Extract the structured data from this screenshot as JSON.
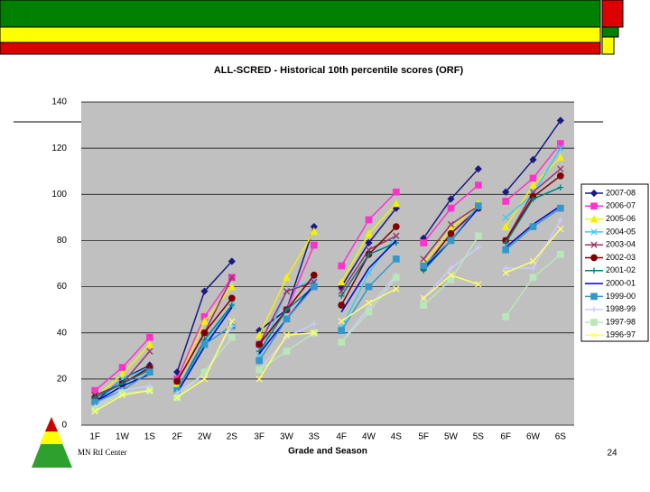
{
  "chart_data": {
    "type": "line",
    "title": "ALL-SCRED - Historical 10th percentile scores (ORF)",
    "x_label": "Grade and Season",
    "categories": [
      "1F",
      "1W",
      "1S",
      "2F",
      "2W",
      "2S",
      "3F",
      "3W",
      "3S",
      "4F",
      "4W",
      "4S",
      "5F",
      "5W",
      "5S",
      "6F",
      "6W",
      "6S"
    ],
    "ylim": [
      0,
      140
    ],
    "yticks": [
      0,
      20,
      40,
      60,
      80,
      100,
      120,
      140
    ],
    "grid": true,
    "legend": "right",
    "series": [
      {
        "name": "2007-08",
        "color": "#1a1a80",
        "marker": "diamond",
        "values": [
          10,
          20,
          26,
          23,
          58,
          71,
          41,
          50,
          86,
          60,
          79,
          94,
          81,
          98,
          111,
          101,
          115,
          132
        ]
      },
      {
        "name": "2006-07",
        "color": "#ff33cc",
        "marker": "square",
        "values": [
          15,
          25,
          38,
          20,
          47,
          64,
          35,
          50,
          78,
          69,
          89,
          101,
          79,
          94,
          104,
          97,
          107,
          122
        ]
      },
      {
        "name": "2005-06",
        "color": "#f2f200",
        "marker": "triangle",
        "values": [
          12,
          22,
          35,
          18,
          45,
          60,
          39,
          64,
          84,
          62,
          83,
          96,
          70,
          85,
          96,
          86,
          104,
          116
        ]
      },
      {
        "name": "2004-05",
        "color": "#33ccff",
        "marker": "x",
        "values": [
          9,
          20,
          25,
          15,
          35,
          52,
          30,
          58,
          63,
          42,
          66,
          82,
          69,
          80,
          94,
          90,
          100,
          120
        ]
      },
      {
        "name": "2003-04",
        "color": "#993366",
        "marker": "x",
        "values": [
          13,
          18,
          32,
          19,
          40,
          64,
          35,
          58,
          62,
          58,
          76,
          82,
          72,
          87,
          95,
          80,
          101,
          111
        ]
      },
      {
        "name": "2002-03",
        "color": "#800000",
        "marker": "circle",
        "values": [
          12,
          18,
          25,
          19,
          40,
          55,
          35,
          50,
          65,
          52,
          74,
          86,
          68,
          83,
          94,
          80,
          99,
          108
        ]
      },
      {
        "name": "2001-02",
        "color": "#008080",
        "marker": "plus",
        "values": [
          12,
          18,
          24,
          15,
          37,
          52,
          32,
          50,
          60,
          56,
          74,
          79,
          67,
          80,
          94,
          79,
          98,
          103
        ]
      },
      {
        "name": "2000-01",
        "color": "#0000cc",
        "marker": "none",
        "values": [
          10,
          17,
          22,
          14,
          34,
          51,
          31,
          46,
          61,
          49,
          68,
          80,
          68,
          80,
          94,
          77,
          87,
          95
        ]
      },
      {
        "name": "1999-00",
        "color": "#3399cc",
        "marker": "square",
        "values": [
          10,
          15,
          23,
          15,
          35,
          43,
          28,
          46,
          60,
          41,
          60,
          72,
          69,
          80,
          95,
          76,
          86,
          94
        ]
      },
      {
        "name": "1998-99",
        "color": "#ccccff",
        "marker": "plus",
        "values": [
          8,
          15,
          17,
          14,
          22,
          43,
          24,
          38,
          44,
          36,
          51,
          65,
          55,
          68,
          77,
          68,
          68,
          89
        ]
      },
      {
        "name": "1997-98",
        "color": "#b8e8b8",
        "marker": "square",
        "values": [
          7,
          14,
          15,
          12,
          23,
          38,
          24,
          32,
          40,
          36,
          49,
          64,
          52,
          63,
          82,
          47,
          64,
          74
        ]
      },
      {
        "name": "1996-97",
        "color": "#ffff66",
        "marker": "x",
        "values": [
          6,
          13,
          15,
          12,
          20,
          45,
          20,
          39,
          40,
          45,
          53,
          59,
          55,
          65,
          61,
          66,
          71,
          85
        ]
      }
    ]
  },
  "slide": {
    "footer": "MN RtI Center",
    "page_number": "24"
  }
}
